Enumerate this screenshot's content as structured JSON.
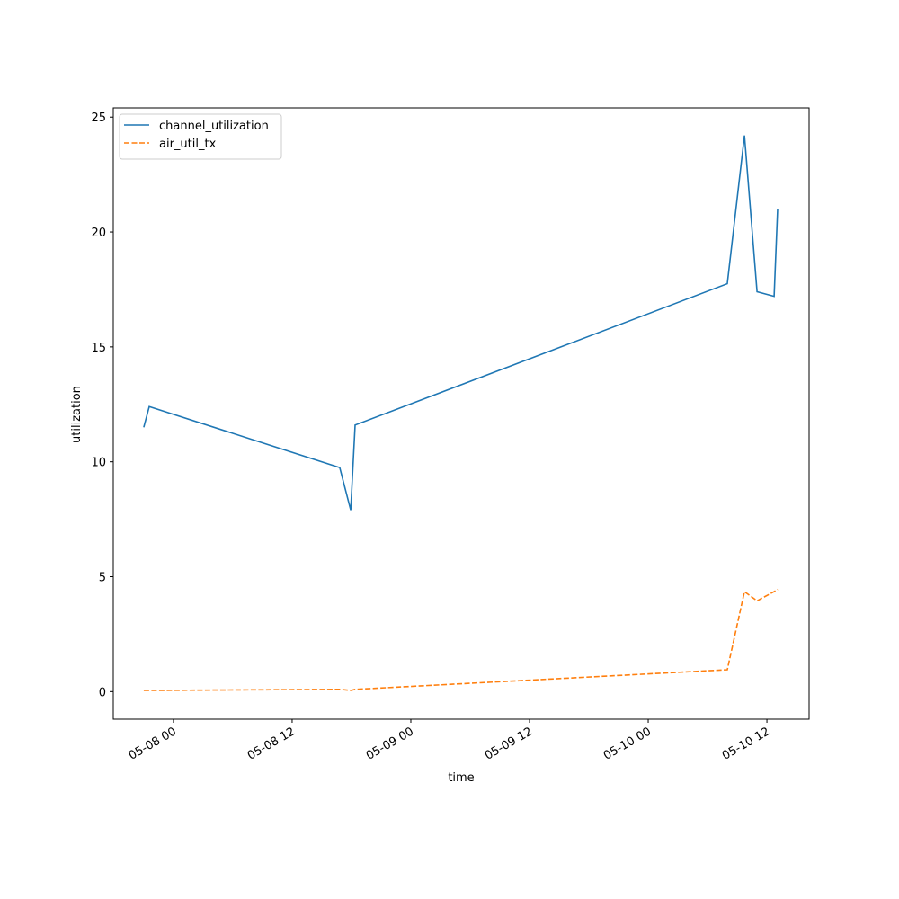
{
  "chart_data": {
    "type": "line",
    "xlabel": "time",
    "ylabel": "utilization",
    "x": [
      "05-07 21:00",
      "05-07 21:33",
      "05-08 16:49",
      "05-08 17:55",
      "05-08 18:22",
      "05-10 08:00",
      "05-10 09:44",
      "05-10 11:00",
      "05-10 12:44",
      "05-10 13:05"
    ],
    "series": [
      {
        "name": "channel_utilization",
        "color": "#1f77b4",
        "dash": "solid",
        "values": [
          11.5,
          12.4,
          9.75,
          7.9,
          11.6,
          17.75,
          24.2,
          17.4,
          17.2,
          21.0
        ]
      },
      {
        "name": "air_util_tx",
        "color": "#ff7f0e",
        "dash": "dashed",
        "values": [
          0.05,
          0.05,
          0.1,
          0.05,
          0.1,
          0.95,
          4.35,
          3.95,
          4.35,
          4.45
        ]
      }
    ],
    "xlim": [
      "05-07 17:55",
      "05-10 16:16"
    ],
    "xticks": [
      "05-08 00",
      "05-08 12",
      "05-09 00",
      "05-09 12",
      "05-10 00",
      "05-10 12"
    ],
    "ylim": [
      -1.2,
      25.4
    ],
    "yticks": [
      0,
      5,
      10,
      15,
      20,
      25
    ],
    "legend": "upper-left"
  }
}
